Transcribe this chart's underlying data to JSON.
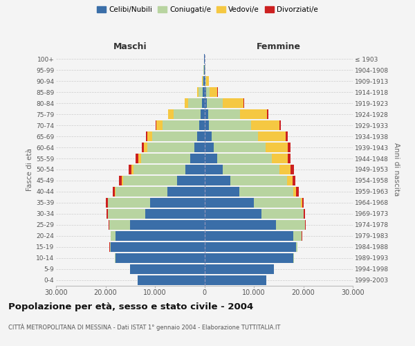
{
  "age_groups": [
    "0-4",
    "5-9",
    "10-14",
    "15-19",
    "20-24",
    "25-29",
    "30-34",
    "35-39",
    "40-44",
    "45-49",
    "50-54",
    "55-59",
    "60-64",
    "65-69",
    "70-74",
    "75-79",
    "80-84",
    "85-89",
    "90-94",
    "95-99",
    "100+"
  ],
  "birth_years": [
    "1999-2003",
    "1994-1998",
    "1989-1993",
    "1984-1988",
    "1979-1983",
    "1974-1978",
    "1969-1973",
    "1964-1968",
    "1959-1963",
    "1954-1958",
    "1949-1953",
    "1944-1948",
    "1939-1943",
    "1934-1938",
    "1929-1933",
    "1924-1928",
    "1919-1923",
    "1914-1918",
    "1909-1913",
    "1904-1908",
    "≤ 1903"
  ],
  "colors": {
    "celibi": "#3a6ea8",
    "coniugati": "#b8d4a0",
    "vedovi": "#f5c842",
    "divorziati": "#cc2020"
  },
  "maschi": {
    "celibi": [
      13500,
      15000,
      18000,
      19000,
      18000,
      15000,
      12000,
      11000,
      7500,
      5500,
      3800,
      2800,
      2000,
      1500,
      1000,
      700,
      500,
      350,
      150,
      90,
      80
    ],
    "coniugati": [
      5,
      15,
      50,
      150,
      900,
      4200,
      7500,
      8500,
      10500,
      11000,
      10500,
      10000,
      9500,
      9000,
      7500,
      5500,
      2800,
      800,
      250,
      80,
      40
    ],
    "vedovi": [
      1,
      2,
      3,
      5,
      40,
      20,
      35,
      60,
      130,
      250,
      450,
      600,
      800,
      1100,
      1200,
      1100,
      700,
      250,
      80,
      25,
      8
    ],
    "divorziati": [
      2,
      5,
      12,
      25,
      60,
      110,
      220,
      350,
      450,
      550,
      600,
      550,
      400,
      280,
      180,
      80,
      40,
      25,
      12,
      8,
      4
    ]
  },
  "femmine": {
    "nubili": [
      12500,
      14000,
      18000,
      18500,
      18000,
      14500,
      11500,
      10000,
      7000,
      5200,
      3700,
      2600,
      1900,
      1400,
      900,
      700,
      500,
      350,
      150,
      80,
      60
    ],
    "coniugate": [
      5,
      20,
      60,
      250,
      1600,
      5800,
      8500,
      9500,
      11000,
      11500,
      11500,
      11000,
      10500,
      9500,
      8500,
      6500,
      3200,
      700,
      200,
      60,
      25
    ],
    "vedove": [
      1,
      2,
      5,
      12,
      35,
      60,
      120,
      250,
      600,
      1100,
      2200,
      3200,
      4500,
      5500,
      5800,
      5500,
      4200,
      1600,
      500,
      90,
      18
    ],
    "divorziate": [
      2,
      5,
      18,
      35,
      90,
      160,
      270,
      320,
      450,
      580,
      650,
      650,
      560,
      420,
      280,
      180,
      80,
      35,
      18,
      8,
      4
    ]
  },
  "title": "Popolazione per età, sesso e stato civile - 2004",
  "subtitle": "CITTÀ METROPOLITANA DI MESSINA - Dati ISTAT 1° gennaio 2004 - Elaborazione TUTTITALIA.IT",
  "label_maschi": "Maschi",
  "label_femmine": "Femmine",
  "ylabel_left": "Fasce di età",
  "ylabel_right": "Anni di nascita",
  "xlim": 30000,
  "background_color": "#f4f4f4",
  "grid_color": "#cccccc",
  "legend_labels": [
    "Celibi/Nubili",
    "Coniugati/e",
    "Vedovi/e",
    "Divorziati/e"
  ]
}
